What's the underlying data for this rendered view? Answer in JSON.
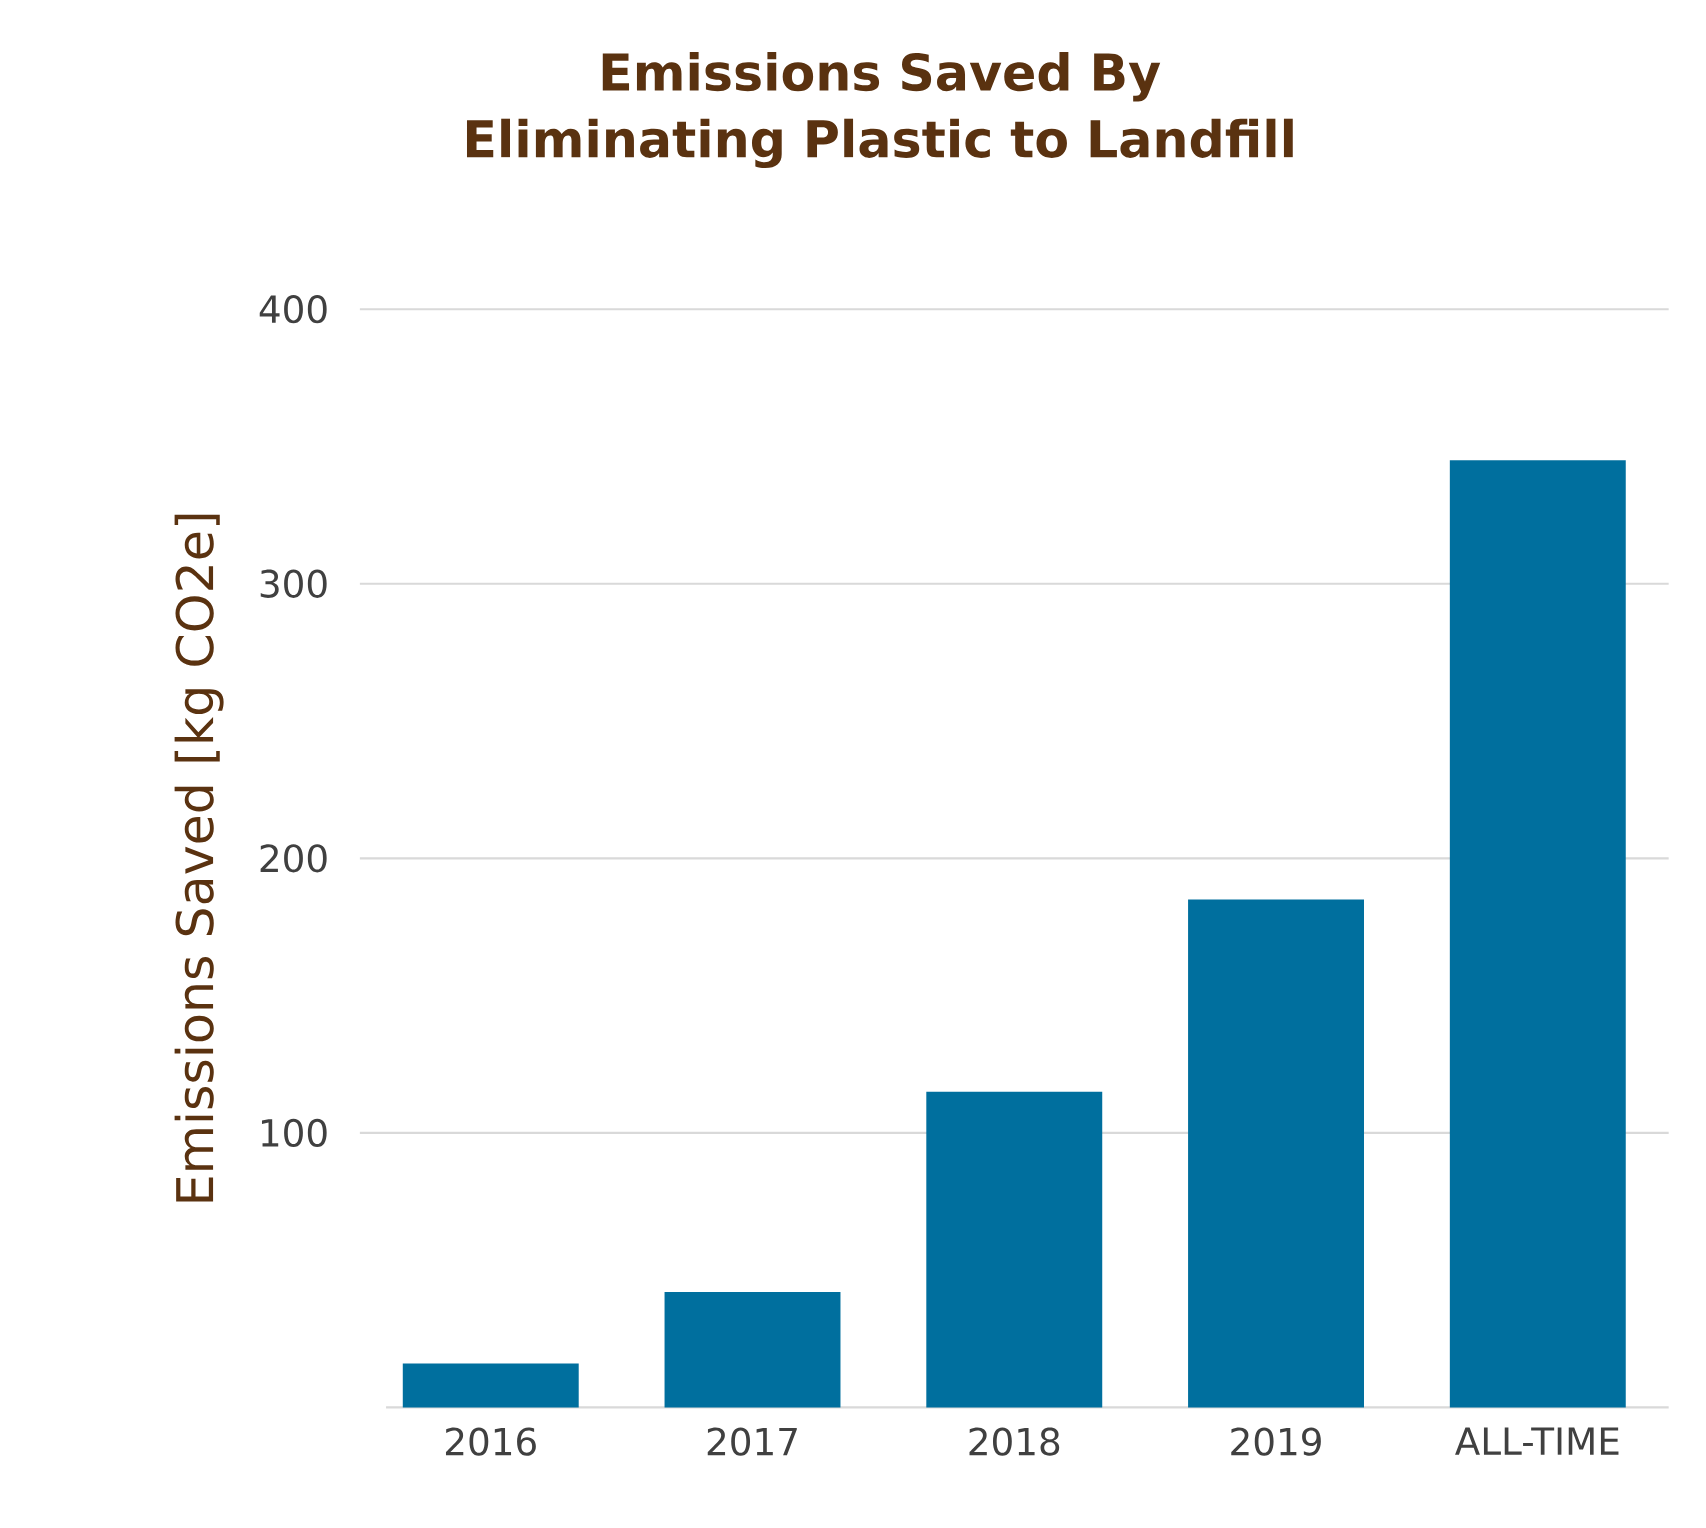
{
  "chart_data": {
    "type": "bar",
    "title": "Emissions Saved By Eliminating Plastic to Landfill",
    "ylabel": "Emissions Saved [kg CO2e]",
    "categories": [
      "2016",
      "2017",
      "2018",
      "2019",
      "ALL-TIME"
    ],
    "values": [
      16,
      42,
      115,
      185,
      345
    ],
    "color": "#006f9e",
    "ylim": [
      0,
      400
    ],
    "yticks": [
      100,
      200,
      300,
      400
    ],
    "grid": "y"
  }
}
